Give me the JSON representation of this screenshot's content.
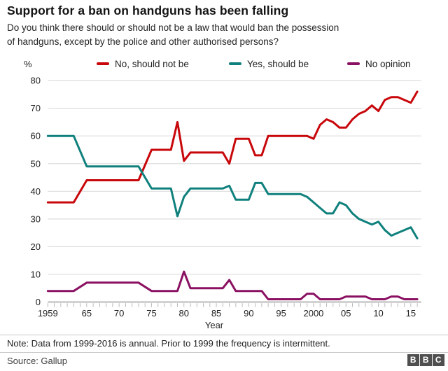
{
  "header": {
    "title": "Support for a ban on handguns has been falling",
    "subtitle_line1": "Do you think there should or should not be a law that would ban the possession",
    "subtitle_line2": "of handguns, except by the police and other authorised persons?"
  },
  "legend": [
    {
      "id": "no-should-not-be",
      "label": "No, should not be",
      "color": "#c8070b"
    },
    {
      "id": "yes-should-be",
      "label": "Yes, should be",
      "color": "#0f807c"
    },
    {
      "id": "no-opinion",
      "label": "No opinion",
      "color": "#8a1162"
    }
  ],
  "chart_data": {
    "type": "line",
    "title": "Support for a ban on handguns has been falling",
    "xlabel": "Year",
    "ylabel": "%",
    "ylim": [
      0,
      80
    ],
    "yticks": [
      0,
      10,
      20,
      30,
      40,
      50,
      60,
      70,
      80
    ],
    "xticks": [
      {
        "year": 1959,
        "label": "1959"
      },
      {
        "year": 1965,
        "label": "65"
      },
      {
        "year": 1970,
        "label": "70"
      },
      {
        "year": 1975,
        "label": "75"
      },
      {
        "year": 1980,
        "label": "80"
      },
      {
        "year": 1985,
        "label": "85"
      },
      {
        "year": 1990,
        "label": "90"
      },
      {
        "year": 1995,
        "label": "95"
      },
      {
        "year": 2000,
        "label": "2000"
      },
      {
        "year": 2005,
        "label": "05"
      },
      {
        "year": 2010,
        "label": "10"
      },
      {
        "year": 2015,
        "label": "15"
      }
    ],
    "xrange": [
      1959,
      2016
    ],
    "grid": true,
    "legend_position": "top",
    "x": [
      1959,
      1963,
      1965,
      1973,
      1975,
      1978,
      1979,
      1980,
      1981,
      1986,
      1987,
      1988,
      1990,
      1991,
      1992,
      1993,
      1998,
      1999,
      2000,
      2001,
      2002,
      2003,
      2004,
      2005,
      2006,
      2007,
      2008,
      2009,
      2010,
      2011,
      2012,
      2013,
      2014,
      2015,
      2016
    ],
    "series": [
      {
        "id": "no-should-not-be",
        "name": "No, should not be",
        "color": "#c8070b",
        "values": [
          36,
          36,
          44,
          44,
          55,
          55,
          65,
          51,
          54,
          54,
          50,
          59,
          59,
          53,
          53,
          60,
          60,
          60,
          59,
          64,
          66,
          65,
          63,
          63,
          66,
          68,
          69,
          71,
          69,
          73,
          74,
          74,
          73,
          72,
          76
        ]
      },
      {
        "id": "yes-should-be",
        "name": "Yes, should be",
        "color": "#0f807c",
        "values": [
          60,
          60,
          49,
          49,
          41,
          41,
          31,
          38,
          41,
          41,
          42,
          37,
          37,
          43,
          43,
          39,
          39,
          38,
          36,
          34,
          32,
          32,
          36,
          35,
          32,
          30,
          29,
          28,
          29,
          26,
          24,
          25,
          26,
          27,
          23
        ]
      },
      {
        "id": "no-opinion",
        "name": "No opinion",
        "color": "#8a1162",
        "values": [
          4,
          4,
          7,
          7,
          4,
          4,
          4,
          11,
          5,
          5,
          8,
          4,
          4,
          4,
          4,
          1,
          1,
          3,
          3,
          1,
          1,
          1,
          1,
          2,
          2,
          2,
          2,
          1,
          1,
          1,
          2,
          2,
          1,
          1,
          1
        ]
      }
    ]
  },
  "footer": {
    "note": "Note: Data from 1999-2016 is annual. Prior to 1999 the frequency is intermittent.",
    "source": "Source: Gallup",
    "logo_letters": [
      "B",
      "B",
      "C"
    ]
  }
}
